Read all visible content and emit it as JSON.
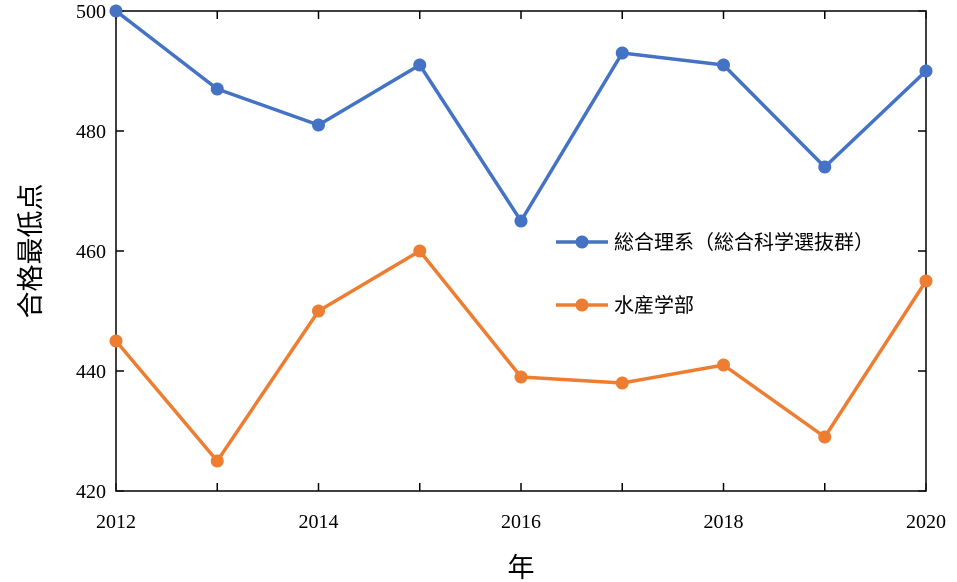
{
  "chart_data": {
    "type": "line",
    "title": "",
    "xlabel": "年",
    "ylabel": "合格最低点",
    "x": [
      2012,
      2013,
      2014,
      2015,
      2016,
      2017,
      2018,
      2019,
      2020
    ],
    "xlim": [
      2012,
      2020
    ],
    "ylim": [
      420,
      500
    ],
    "x_ticks": [
      "2012",
      "2014",
      "2016",
      "2018",
      "2020"
    ],
    "y_ticks": [
      "420",
      "440",
      "460",
      "480",
      "500"
    ],
    "grid": false,
    "legend_position": "right",
    "series": [
      {
        "name": "総合理系（総合科学選抜群）",
        "color": "#4472C4",
        "values": [
          500,
          487,
          481,
          491,
          465,
          493,
          491,
          474,
          490
        ]
      },
      {
        "name": "水産学部",
        "color": "#ED7D31",
        "values": [
          445,
          425,
          450,
          460,
          439,
          438,
          441,
          429,
          455
        ]
      }
    ]
  }
}
